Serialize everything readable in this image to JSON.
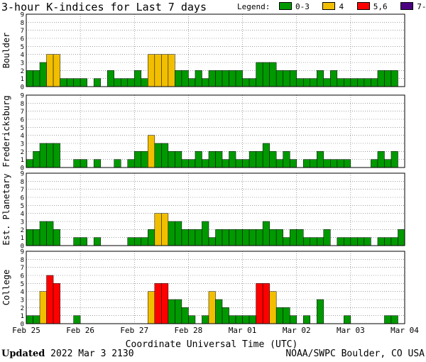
{
  "title": "3-hour K-indices for Last 7 days",
  "legend": {
    "label": "Legend:",
    "items": [
      {
        "label": "0-3",
        "color": "#009900"
      },
      {
        "label": "4",
        "color": "#f2bf00"
      },
      {
        "label": "5,6",
        "color": "#ff0000"
      },
      {
        "label": "7-9",
        "color": "#4b0082"
      }
    ]
  },
  "footer": {
    "updated_label": "Updated",
    "updated_value": "2022 Mar  3 2130",
    "credit": "NOAA/SWPC Boulder, CO USA"
  },
  "chart_data": {
    "type": "bar",
    "xlabel": "Coordinate Universal Time (UTC)",
    "x_ticks": [
      "Feb 25",
      "Feb 26",
      "Feb 27",
      "Feb 28",
      "Mar 01",
      "Mar 02",
      "Mar 03",
      "Mar 04"
    ],
    "y_ticks": [
      "0",
      "1",
      "2",
      "3",
      "4",
      "5",
      "6",
      "7",
      "8",
      "9"
    ],
    "ylim": [
      0,
      9
    ],
    "bin": "3-hour",
    "grid": true,
    "panels": [
      {
        "ylabel": "Boulder",
        "values": [
          2,
          2,
          3,
          4,
          4,
          1,
          1,
          1,
          1,
          0,
          1,
          0,
          2,
          1,
          1,
          1,
          2,
          1,
          4,
          4,
          4,
          4,
          2,
          2,
          1,
          2,
          1,
          2,
          2,
          2,
          2,
          2,
          1,
          1,
          3,
          3,
          3,
          2,
          2,
          2,
          1,
          1,
          1,
          2,
          1,
          2,
          1,
          1,
          1,
          1,
          1,
          1,
          2,
          2,
          2,
          0
        ]
      },
      {
        "ylabel": "Fredericksburg",
        "values": [
          1,
          2,
          3,
          3,
          3,
          0,
          0,
          1,
          1,
          0,
          1,
          0,
          0,
          1,
          0,
          1,
          2,
          2,
          4,
          3,
          3,
          2,
          2,
          1,
          1,
          2,
          1,
          2,
          2,
          1,
          2,
          1,
          1,
          2,
          2,
          3,
          2,
          1,
          2,
          1,
          0,
          1,
          1,
          2,
          1,
          1,
          1,
          1,
          0,
          0,
          0,
          1,
          2,
          1,
          2,
          0
        ]
      },
      {
        "ylabel": "Est. Planetary",
        "values": [
          2,
          2,
          3,
          3,
          2,
          0,
          0,
          1,
          1,
          0,
          1,
          0,
          0,
          0,
          0,
          1,
          1,
          1,
          2,
          4,
          4,
          3,
          3,
          2,
          2,
          2,
          3,
          1,
          2,
          2,
          2,
          2,
          2,
          2,
          2,
          3,
          2,
          2,
          1,
          2,
          2,
          1,
          1,
          1,
          2,
          0,
          1,
          1,
          1,
          1,
          1,
          0,
          1,
          1,
          1,
          2
        ]
      },
      {
        "ylabel": "College",
        "values": [
          1,
          1,
          4,
          6,
          5,
          0,
          0,
          1,
          0,
          0,
          0,
          0,
          0,
          0,
          0,
          0,
          0,
          0,
          4,
          5,
          5,
          3,
          3,
          2,
          1,
          0,
          1,
          4,
          3,
          2,
          1,
          1,
          1,
          1,
          5,
          5,
          4,
          2,
          2,
          1,
          0,
          1,
          0,
          3,
          0,
          0,
          0,
          1,
          0,
          0,
          0,
          0,
          0,
          1,
          1,
          0
        ]
      }
    ]
  }
}
